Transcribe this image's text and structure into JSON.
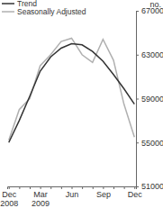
{
  "chart_data": {
    "type": "line",
    "ylabel": "no.",
    "categories": [
      "Dec 2008",
      null,
      null,
      "Mar 2009",
      null,
      null,
      "Jun",
      null,
      null,
      "Sep",
      null,
      null,
      "Dec"
    ],
    "series": [
      {
        "name": "Trend",
        "color": "#333333",
        "values": [
          55000,
          57000,
          59200,
          61500,
          62800,
          63600,
          64000,
          63900,
          63300,
          62400,
          61200,
          59900,
          58500
        ]
      },
      {
        "name": "Seasonally Adjusted",
        "color": "#b0b0b0",
        "values": [
          55200,
          58000,
          59000,
          62000,
          63000,
          64200,
          64500,
          63000,
          62300,
          64400,
          62500,
          58500,
          55500
        ]
      }
    ],
    "ylim": [
      51000,
      67000
    ],
    "yticks": [
      51000,
      55000,
      59000,
      63000,
      67000
    ],
    "legend": "top-left",
    "grid": false
  }
}
